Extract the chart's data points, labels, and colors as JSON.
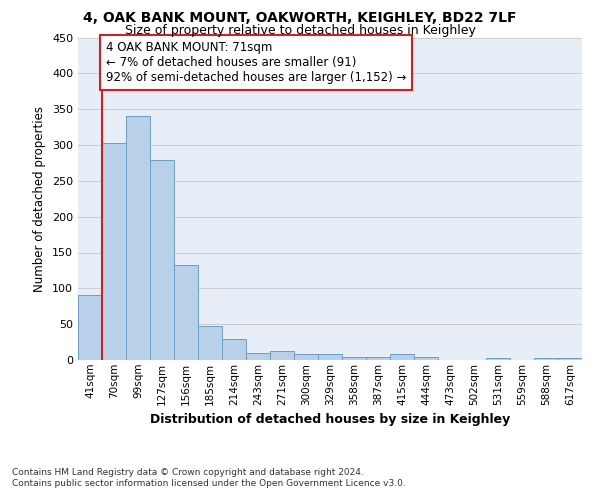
{
  "title1": "4, OAK BANK MOUNT, OAKWORTH, KEIGHLEY, BD22 7LF",
  "title2": "Size of property relative to detached houses in Keighley",
  "xlabel": "Distribution of detached houses by size in Keighley",
  "ylabel": "Number of detached properties",
  "categories": [
    "41sqm",
    "70sqm",
    "99sqm",
    "127sqm",
    "156sqm",
    "185sqm",
    "214sqm",
    "243sqm",
    "271sqm",
    "300sqm",
    "329sqm",
    "358sqm",
    "387sqm",
    "415sqm",
    "444sqm",
    "473sqm",
    "502sqm",
    "531sqm",
    "559sqm",
    "588sqm",
    "617sqm"
  ],
  "values": [
    91,
    303,
    341,
    279,
    133,
    47,
    30,
    10,
    13,
    8,
    8,
    4,
    4,
    9,
    4,
    0,
    0,
    3,
    0,
    3,
    3
  ],
  "bar_color": "#b8d0e8",
  "bar_edge_color": "#6a9fc8",
  "annotation_text": "4 OAK BANK MOUNT: 71sqm\n← 7% of detached houses are smaller (91)\n92% of semi-detached houses are larger (1,152) →",
  "annotation_box_color": "#ffffff",
  "annotation_box_edge_color": "#cc2222",
  "vline_color": "#cc2222",
  "vline_x_idx": 1,
  "ylim": [
    0,
    450
  ],
  "yticks": [
    0,
    50,
    100,
    150,
    200,
    250,
    300,
    350,
    400,
    450
  ],
  "grid_color": "#cccccc",
  "bg_color": "#e8eef8",
  "footnote": "Contains HM Land Registry data © Crown copyright and database right 2024.\nContains public sector information licensed under the Open Government Licence v3.0."
}
